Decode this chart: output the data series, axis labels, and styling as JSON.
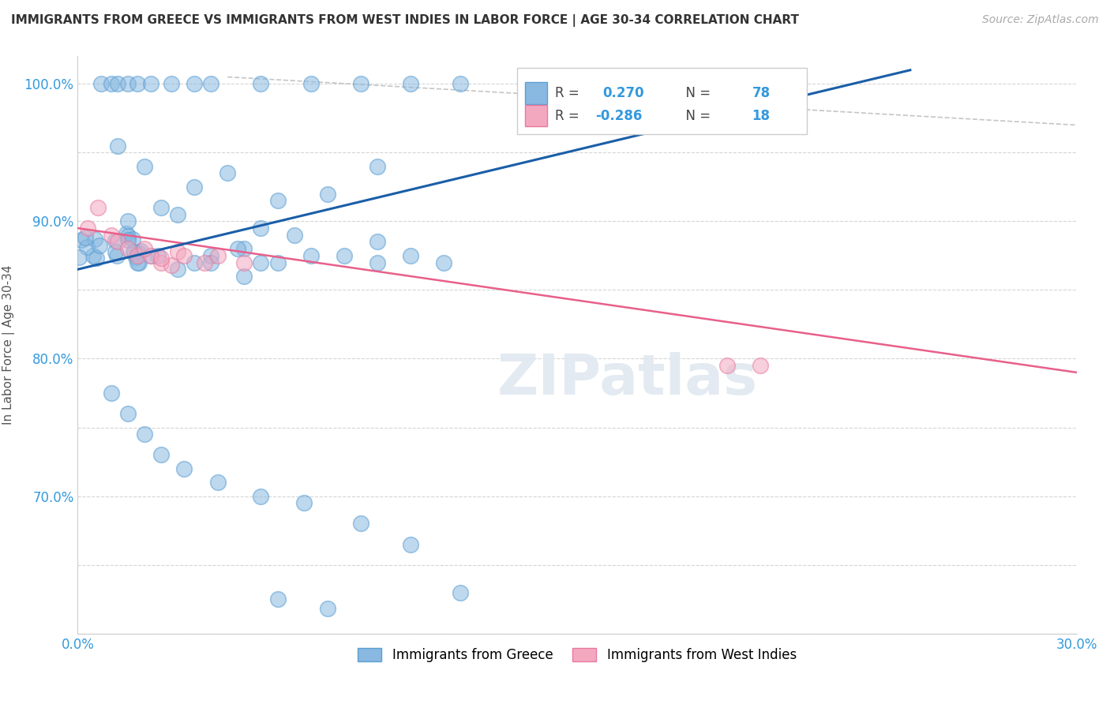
{
  "title": "IMMIGRANTS FROM GREECE VS IMMIGRANTS FROM WEST INDIES IN LABOR FORCE | AGE 30-34 CORRELATION CHART",
  "source": "Source: ZipAtlas.com",
  "ylabel": "In Labor Force | Age 30-34",
  "xlim": [
    0.0,
    0.3
  ],
  "ylim": [
    0.6,
    1.02
  ],
  "greece_color": "#89b8e0",
  "greece_edge_color": "#5a9fd4",
  "west_indies_color": "#f4a8c0",
  "west_indies_edge_color": "#e87aa0",
  "greece_line_color": "#1a5ea8",
  "west_indies_line_color": "#e8608a",
  "diag_line_color": "#bbbbbb",
  "grid_color": "#d5d5d5",
  "watermark": "ZIPatlas",
  "background_color": "#ffffff",
  "R_greece": "0.270",
  "N_greece": "78",
  "R_wi": "-0.286",
  "N_wi": "18",
  "legend_label_greece": "Immigrants from Greece",
  "legend_label_wi": "Immigrants from West Indies",
  "greece_trend": [
    0.0,
    0.25,
    0.865,
    1.01
  ],
  "wi_trend": [
    0.0,
    0.3,
    0.895,
    0.79
  ],
  "diag_trend": [
    0.045,
    0.3,
    1.005,
    0.97
  ]
}
